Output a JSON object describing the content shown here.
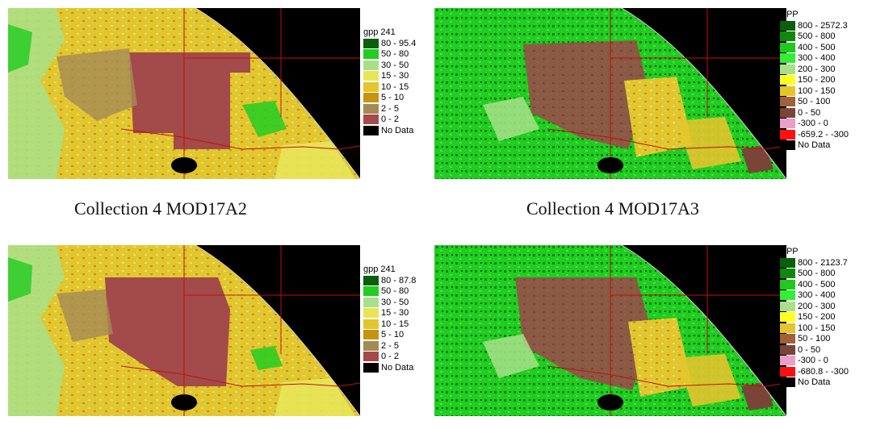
{
  "panels": [
    {
      "id": "a2-c4",
      "legend_title": "gpp 241",
      "legend": [
        {
          "label": "80 - 95.4",
          "color": "#0b5e0b"
        },
        {
          "label": "50 - 80",
          "color": "#22cc22"
        },
        {
          "label": "30 - 50",
          "color": "#a8e08a"
        },
        {
          "label": "15 - 30",
          "color": "#e8e45a"
        },
        {
          "label": "10 - 15",
          "color": "#e3c52d"
        },
        {
          "label": "5 - 10",
          "color": "#c79312"
        },
        {
          "label": "2 - 5",
          "color": "#a58a55"
        },
        {
          "label": "0 - 2",
          "color": "#a34a4a"
        },
        {
          "label": "No Data",
          "color": "#000000"
        }
      ]
    },
    {
      "id": "a3-c4",
      "legend_title": "NPP",
      "legend": [
        {
          "label": "800 - 2572.3",
          "color": "#0b5e0b"
        },
        {
          "label": "500 - 800",
          "color": "#108810"
        },
        {
          "label": "400 - 500",
          "color": "#20c820"
        },
        {
          "label": "300 - 400",
          "color": "#33ee33"
        },
        {
          "label": "200 - 300",
          "color": "#a8e08a"
        },
        {
          "label": "150 - 200",
          "color": "#ffff22"
        },
        {
          "label": "100 - 150",
          "color": "#e3c52d"
        },
        {
          "label": "50 - 100",
          "color": "#a0603a"
        },
        {
          "label": "0 - 50",
          "color": "#7a4438"
        },
        {
          "label": "-300 - 0",
          "color": "#e8a0c8"
        },
        {
          "label": "-659.2 - -300",
          "color": "#ff1010"
        },
        {
          "label": "No Data",
          "color": "#000000"
        }
      ]
    },
    {
      "id": "a2-c5",
      "legend_title": "gpp 241",
      "legend": [
        {
          "label": "80 - 87.8",
          "color": "#0b5e0b"
        },
        {
          "label": "50 - 80",
          "color": "#22cc22"
        },
        {
          "label": "30 - 50",
          "color": "#a8e08a"
        },
        {
          "label": "15 - 30",
          "color": "#e8e45a"
        },
        {
          "label": "10 - 15",
          "color": "#e3c52d"
        },
        {
          "label": "5 - 10",
          "color": "#c79312"
        },
        {
          "label": "2 - 5",
          "color": "#a58a55"
        },
        {
          "label": "0 - 2",
          "color": "#a34a4a"
        },
        {
          "label": "No Data",
          "color": "#000000"
        }
      ]
    },
    {
      "id": "a3-c5",
      "legend_title": "NPP",
      "legend": [
        {
          "label": "800 - 2123.7",
          "color": "#0b5e0b"
        },
        {
          "label": "500 - 800",
          "color": "#108810"
        },
        {
          "label": "400 - 500",
          "color": "#20c820"
        },
        {
          "label": "300 - 400",
          "color": "#33ee33"
        },
        {
          "label": "200 - 300",
          "color": "#a8e08a"
        },
        {
          "label": "150 - 200",
          "color": "#ffff22"
        },
        {
          "label": "100 - 150",
          "color": "#e3c52d"
        },
        {
          "label": "50 - 100",
          "color": "#a0603a"
        },
        {
          "label": "0 - 50",
          "color": "#7a4438"
        },
        {
          "label": "-300 - 0",
          "color": "#e8a0c8"
        },
        {
          "label": "-680.8 - -300",
          "color": "#ff1010"
        },
        {
          "label": "No Data",
          "color": "#000000"
        }
      ]
    }
  ],
  "captions": {
    "left": "Collection 4 MOD17A2",
    "right": "Collection 4 MOD17A3"
  }
}
